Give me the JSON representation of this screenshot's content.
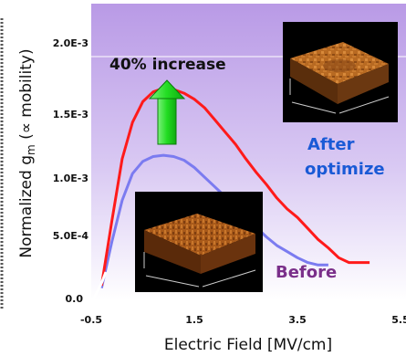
{
  "chart_data": {
    "type": "line",
    "xlabel": "Electric Field [MV/cm]",
    "ylabel_main": "Normalized g",
    "ylabel_sub": "m",
    "ylabel_tail": " (∝ mobility)",
    "x_ticks": [
      "-0.5",
      "1.5",
      "3.5",
      "5.5"
    ],
    "y_ticks": [
      "0.0",
      "5.0E-4",
      "1.0E-3",
      "1.5E-3",
      "2.0E-3"
    ],
    "xlim": [
      -0.5,
      5.5
    ],
    "ylim": [
      0,
      0.0021
    ],
    "series": [
      {
        "name": "After optimize",
        "color": "#ff1a1a",
        "x": [
          -0.3,
          -0.1,
          0.1,
          0.3,
          0.5,
          0.7,
          0.9,
          1.1,
          1.3,
          1.5,
          1.7,
          1.9,
          2.1,
          2.3,
          2.5,
          2.7,
          2.9,
          3.1,
          3.3,
          3.5,
          3.7,
          3.9,
          4.1,
          4.3,
          4.5,
          4.7,
          4.9
        ],
        "y": [
          0.00012,
          0.00065,
          0.00116,
          0.00146,
          0.00163,
          0.00171,
          0.00174,
          0.00173,
          0.0017,
          0.00165,
          0.00158,
          0.00148,
          0.00138,
          0.00128,
          0.00116,
          0.00105,
          0.00095,
          0.00084,
          0.00075,
          0.00068,
          0.00059,
          0.0005,
          0.00043,
          0.00035,
          0.00031,
          0.00031,
          0.00031
        ]
      },
      {
        "name": "Before",
        "color": "#7b7bf0",
        "x": [
          -0.3,
          -0.1,
          0.1,
          0.3,
          0.5,
          0.7,
          0.9,
          1.1,
          1.3,
          1.5,
          1.7,
          1.9,
          2.1,
          2.3,
          2.5,
          2.7,
          2.9,
          3.1,
          3.3,
          3.5,
          3.7,
          3.9,
          4.1
        ],
        "y": [
          0.0001,
          0.00048,
          0.00082,
          0.00104,
          0.00114,
          0.00118,
          0.00119,
          0.00118,
          0.00115,
          0.00109,
          0.00101,
          0.00093,
          0.00085,
          0.00077,
          0.00069,
          0.0006,
          0.00052,
          0.00045,
          0.0004,
          0.00035,
          0.00031,
          0.00029,
          0.00029
        ]
      }
    ],
    "annotations": {
      "increase": "40% increase",
      "after_line1": "After",
      "after_line2": "optimize",
      "before": "Before"
    }
  }
}
